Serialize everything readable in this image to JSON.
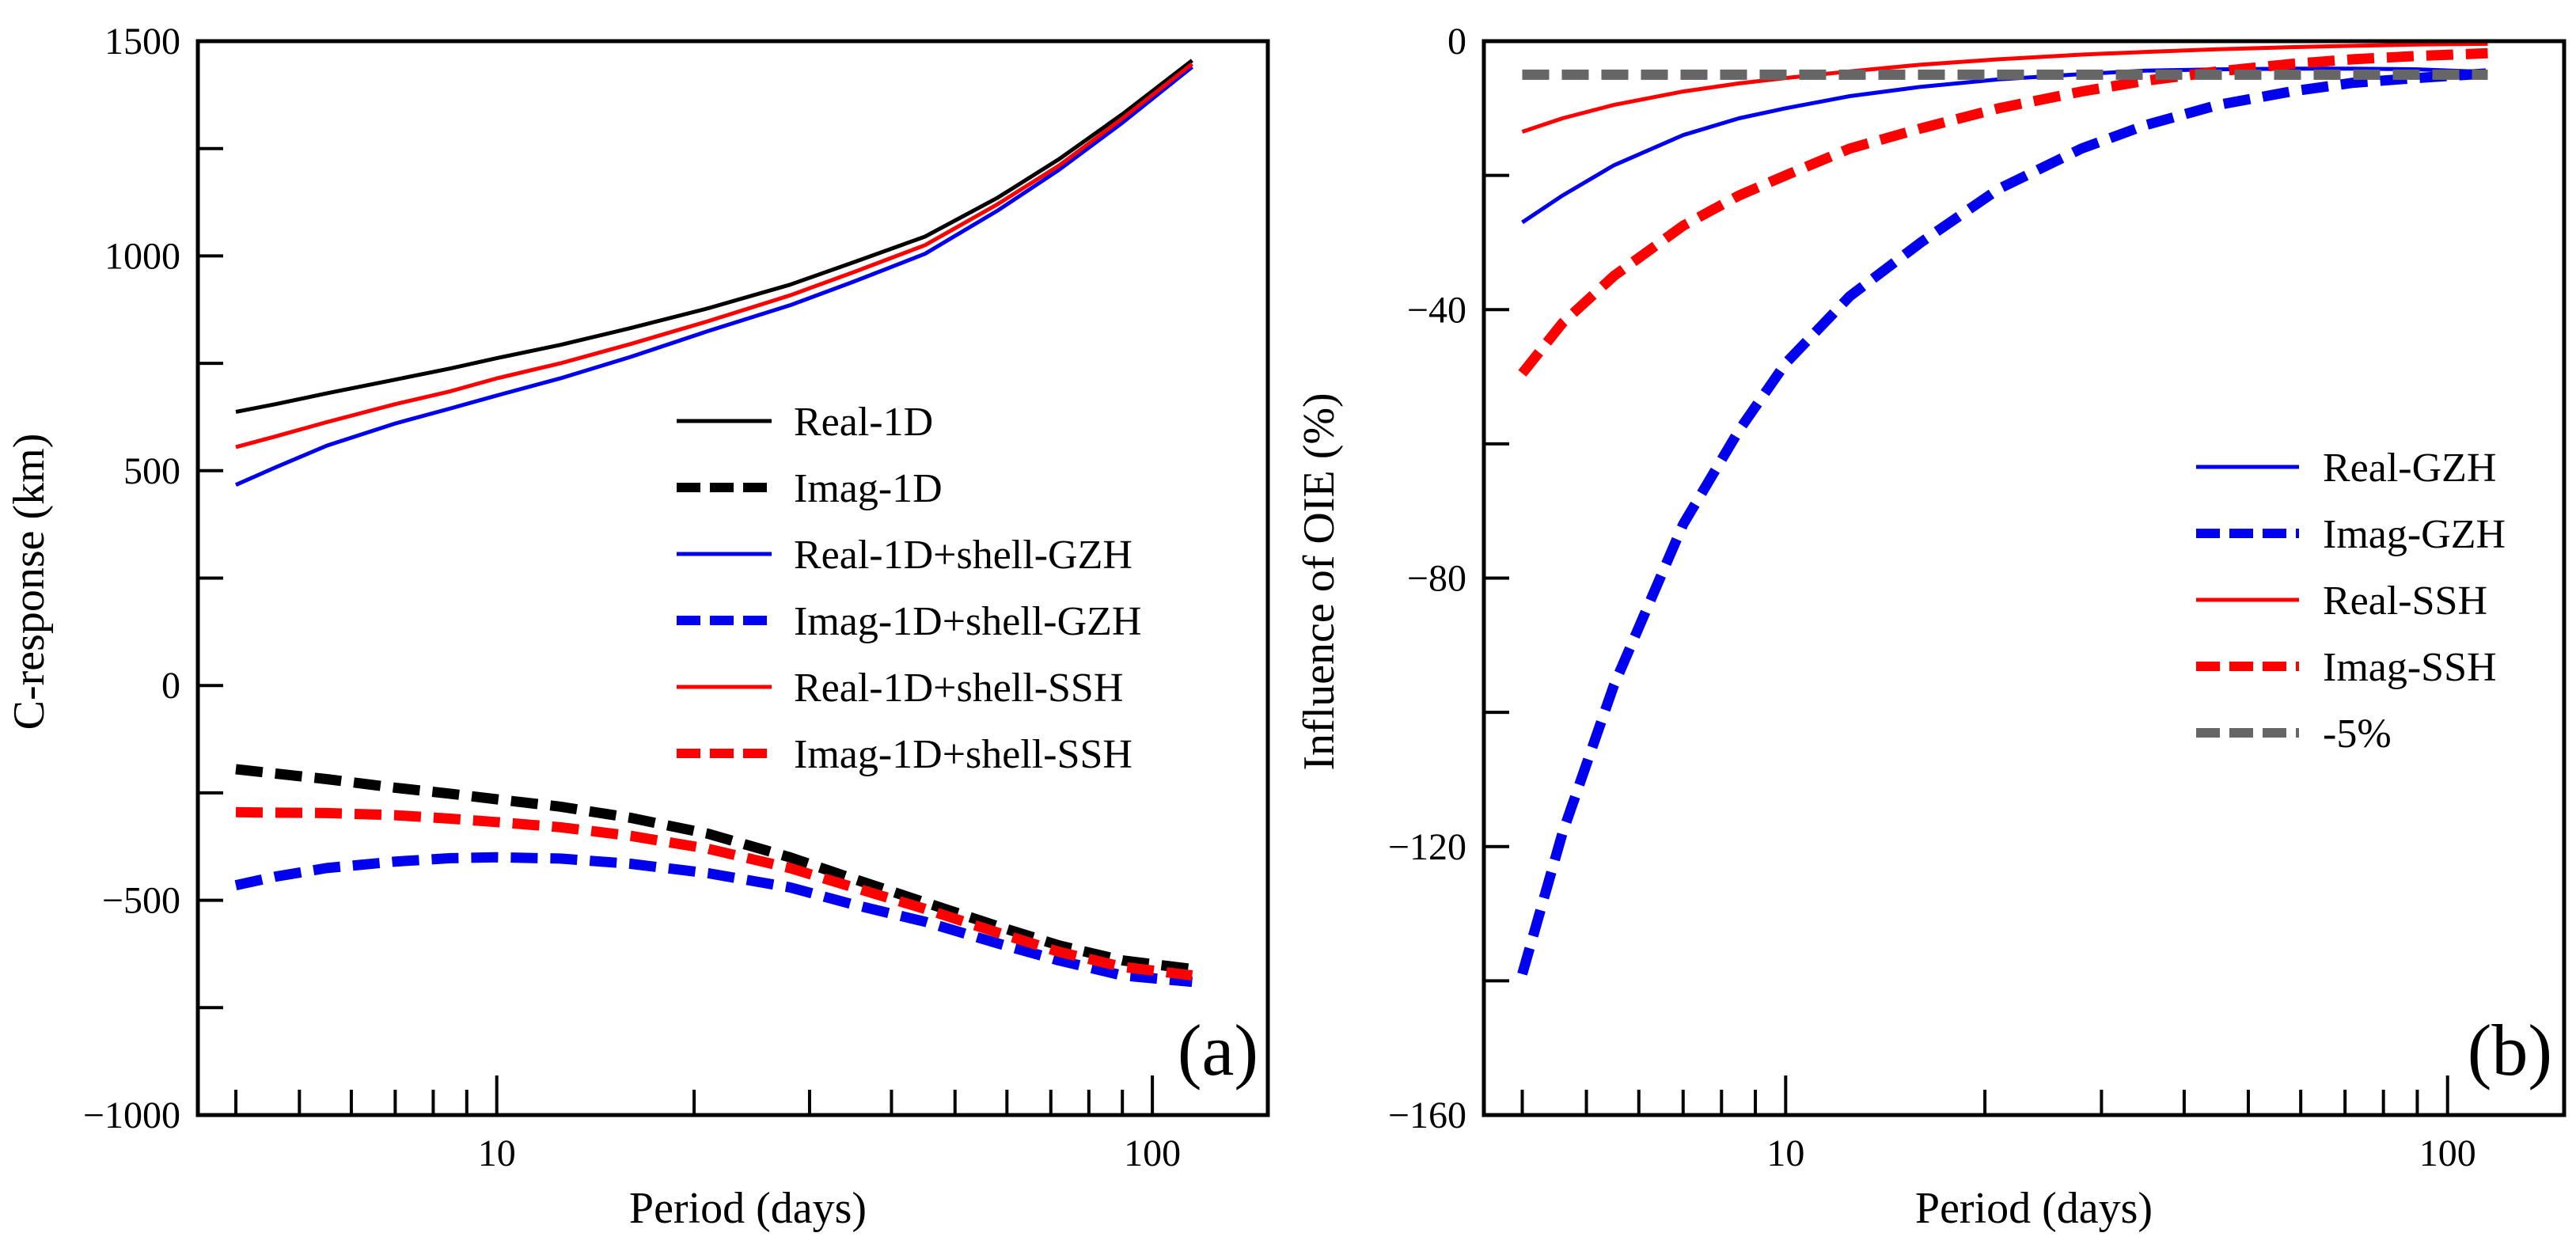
{
  "chart_data": [
    {
      "type": "line",
      "panel_label": "(a)",
      "xscale": "log",
      "xlabel": "Period (days)",
      "ylabel": "C-response (km)",
      "xlim": [
        3.5,
        150
      ],
      "ylim": [
        -1000,
        1500
      ],
      "xticks": [
        10,
        100
      ],
      "xtick_labels": [
        "10",
        "100"
      ],
      "yticks": [
        1500,
        1000,
        500,
        0,
        -500,
        -1000
      ],
      "ytick_labels": [
        "1500",
        "1000",
        "500",
        "0",
        "−500",
        "−1000"
      ],
      "legend_position": "center-right",
      "x": [
        4,
        4.6,
        5.5,
        7,
        8.5,
        10,
        12.5,
        16,
        21,
        28,
        35,
        45,
        58,
        72,
        90,
        115
      ],
      "series": [
        {
          "name": "Real-1D",
          "color": "#000000",
          "style": "solid",
          "values": [
            637,
            655,
            680,
            712,
            738,
            762,
            793,
            832,
            878,
            933,
            985,
            1045,
            1135,
            1225,
            1330,
            1455
          ]
        },
        {
          "name": "Imag-1D",
          "color": "#000000",
          "style": "dashed",
          "values": [
            -195,
            -205,
            -218,
            -238,
            -252,
            -265,
            -282,
            -308,
            -345,
            -400,
            -450,
            -505,
            -560,
            -605,
            -640,
            -660
          ]
        },
        {
          "name": "Real-1D+shell-GZH",
          "color": "#0000ee",
          "style": "solid",
          "values": [
            467,
            508,
            558,
            610,
            645,
            675,
            715,
            765,
            825,
            885,
            940,
            1005,
            1105,
            1200,
            1310,
            1440
          ]
        },
        {
          "name": "Imag-1D+shell-GZH",
          "color": "#0000ee",
          "style": "dashed",
          "values": [
            -465,
            -445,
            -425,
            -410,
            -402,
            -400,
            -403,
            -415,
            -437,
            -470,
            -510,
            -550,
            -600,
            -640,
            -675,
            -690
          ]
        },
        {
          "name": "Real-1D+shell-SSH",
          "color": "#ff0000",
          "style": "solid",
          "values": [
            555,
            580,
            613,
            655,
            685,
            715,
            750,
            795,
            848,
            908,
            962,
            1025,
            1120,
            1210,
            1320,
            1447
          ]
        },
        {
          "name": "Imag-1D+shell-SSH",
          "color": "#ff0000",
          "style": "dashed",
          "values": [
            -295,
            -296,
            -297,
            -302,
            -310,
            -318,
            -330,
            -350,
            -380,
            -425,
            -470,
            -520,
            -575,
            -620,
            -655,
            -675
          ]
        }
      ]
    },
    {
      "type": "line",
      "panel_label": "(b)",
      "xscale": "log",
      "xlabel": "Period (days)",
      "ylabel": "Influence of OIE (%)",
      "xlim": [
        3.5,
        150
      ],
      "ylim": [
        -160,
        0
      ],
      "xticks": [
        10,
        100
      ],
      "xtick_labels": [
        "10",
        "100"
      ],
      "yticks": [
        0,
        -40,
        -80,
        -120,
        -160
      ],
      "ytick_labels": [
        "0",
        "−40",
        "−80",
        "−120",
        "−160"
      ],
      "legend_position": "center-right",
      "x": [
        4,
        4.6,
        5.5,
        7,
        8.5,
        10,
        12.5,
        16,
        21,
        28,
        35,
        45,
        58,
        72,
        90,
        115
      ],
      "series": [
        {
          "name": "Real-GZH",
          "color": "#0000ee",
          "style": "solid",
          "values": [
            -27,
            -23,
            -18.5,
            -14,
            -11.5,
            -10,
            -8.2,
            -6.8,
            -5.7,
            -4.9,
            -4.4,
            -4.2,
            -4.1,
            -4.1,
            -4.2,
            -4.6
          ]
        },
        {
          "name": "Imag-GZH",
          "color": "#0000ee",
          "style": "dashed",
          "values": [
            -139,
            -118,
            -96,
            -72,
            -58,
            -48,
            -38,
            -30,
            -22,
            -16,
            -12.5,
            -9.5,
            -7.5,
            -6.2,
            -5.5,
            -4.8
          ]
        },
        {
          "name": "Real-SSH",
          "color": "#ff0000",
          "style": "solid",
          "values": [
            -13.5,
            -11.5,
            -9.5,
            -7.5,
            -6.3,
            -5.5,
            -4.5,
            -3.5,
            -2.7,
            -2,
            -1.6,
            -1.2,
            -0.9,
            -0.7,
            -0.5,
            -0.4
          ]
        },
        {
          "name": "Imag-SSH",
          "color": "#ff0000",
          "style": "dashed",
          "values": [
            -49.5,
            -42,
            -35,
            -27.5,
            -23,
            -20,
            -16,
            -13,
            -10,
            -7.5,
            -5.9,
            -4.5,
            -3.4,
            -2.7,
            -2.2,
            -1.8
          ]
        },
        {
          "name": "-5%",
          "color": "#666666",
          "style": "dashed",
          "values": [
            -5,
            -5,
            -5,
            -5,
            -5,
            -5,
            -5,
            -5,
            -5,
            -5,
            -5,
            -5,
            -5,
            -5,
            -5,
            -5
          ]
        }
      ]
    }
  ]
}
